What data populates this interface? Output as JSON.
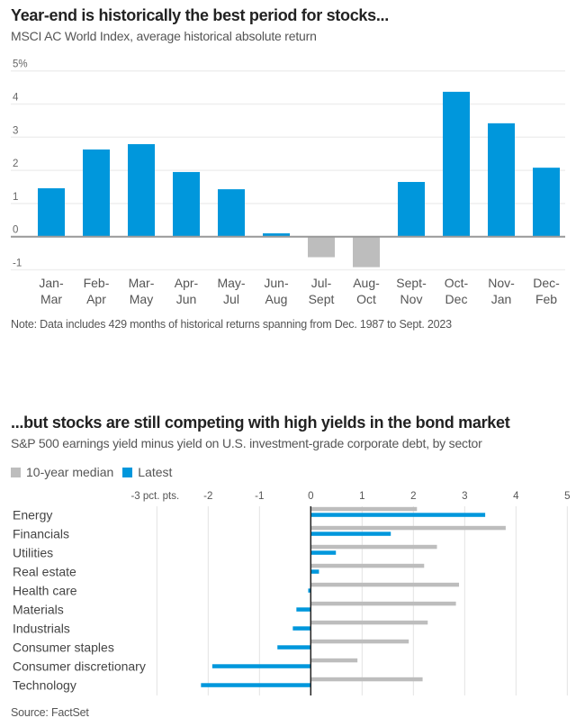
{
  "colors": {
    "positive": "#0097dc",
    "negative": "#bdbdbd",
    "median": "#bdbdbd",
    "latest": "#0097dc",
    "grid": "#efefef",
    "axis": "#999999"
  },
  "chart_data": [
    {
      "type": "bar",
      "title": "Year-end is historically the best period for stocks...",
      "subtitle": "MSCI AC World Index, average historical absolute return",
      "xlabel": "",
      "ylabel": "",
      "ylim": [
        -1,
        5
      ],
      "yticks": [
        5,
        4,
        3,
        2,
        1,
        0,
        -1
      ],
      "ytick_labels": [
        "5%",
        "4",
        "3",
        "2",
        "1",
        "0",
        "-1"
      ],
      "grid": true,
      "categories": [
        [
          "Jan-",
          "Mar"
        ],
        [
          "Feb-",
          "Apr"
        ],
        [
          "Mar-",
          "May"
        ],
        [
          "Apr-",
          "Jun"
        ],
        [
          "May-",
          "Jul"
        ],
        [
          "Jun-",
          "Aug"
        ],
        [
          "Jul-",
          "Sept"
        ],
        [
          "Aug-",
          "Oct"
        ],
        [
          "Sept-",
          "Nov"
        ],
        [
          "Oct-",
          "Dec"
        ],
        [
          "Nov-",
          "Jan"
        ],
        [
          "Dec-",
          "Feb"
        ]
      ],
      "values": [
        1.46,
        2.63,
        2.79,
        1.95,
        1.43,
        0.1,
        -0.62,
        -0.92,
        1.65,
        4.37,
        3.42,
        2.08
      ],
      "note": "Note: Data includes 429 months of historical returns spanning from Dec. 1987 to Sept. 2023"
    },
    {
      "type": "bar",
      "orientation": "horizontal",
      "title": "...but stocks are still competing with high yields in the bond market",
      "subtitle": "S&P 500 earnings yield minus yield on U.S. investment-grade corporate debt, by sector",
      "xlim": [
        -3,
        5
      ],
      "xticks": [
        -3,
        -2,
        -1,
        0,
        1,
        2,
        3,
        4,
        5
      ],
      "xtick_labels": [
        "-3 pct. pts.",
        "-2",
        "-1",
        "0",
        "1",
        "2",
        "3",
        "4",
        "5"
      ],
      "grid": true,
      "legend_position": "top-left",
      "categories": [
        "Energy",
        "Financials",
        "Utilities",
        "Real estate",
        "Health care",
        "Materials",
        "Industrials",
        "Consumer staples",
        "Consumer discretionary",
        "Technology"
      ],
      "series": [
        {
          "name": "10-year median",
          "values": [
            2.07,
            3.8,
            2.46,
            2.21,
            2.89,
            2.83,
            2.28,
            1.91,
            0.91,
            2.18
          ]
        },
        {
          "name": "Latest",
          "values": [
            3.4,
            1.56,
            0.49,
            0.16,
            -0.05,
            -0.28,
            -0.35,
            -0.65,
            -1.92,
            -2.14
          ]
        }
      ],
      "source": "Source: FactSet"
    }
  ]
}
